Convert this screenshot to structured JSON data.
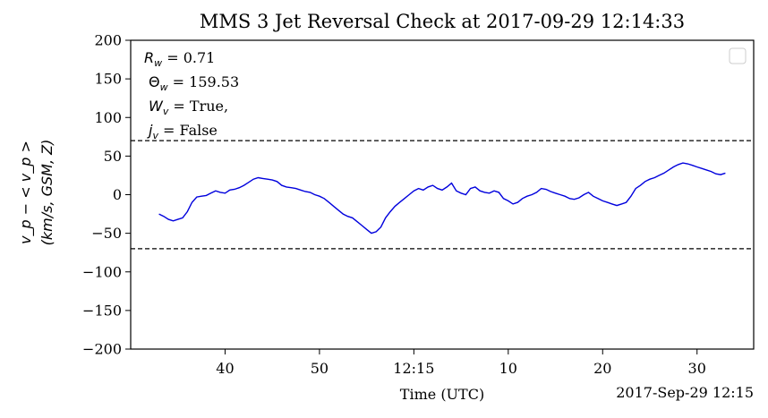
{
  "chart_data": {
    "type": "line",
    "title": "MMS 3 Jet Reversal Check at 2017-09-29 12:14:33",
    "xlabel": "Time (UTC)",
    "x_offset_label": "2017-Sep-29 12:15",
    "ylabel_line1": "v_p − < v_p >",
    "ylabel_line2": "(km/s, GSM, Z)",
    "ylim": [
      -200,
      200
    ],
    "yticks": [
      -200,
      -150,
      -100,
      -50,
      0,
      50,
      100,
      150,
      200
    ],
    "ytick_labels": [
      "−200",
      "−150",
      "−100",
      "−50",
      "0",
      "50",
      "100",
      "150",
      "200"
    ],
    "xlim": [
      "12:14:30",
      "12:15:36"
    ],
    "xticks": [
      "12:14:40",
      "12:14:50",
      "12:15:00",
      "12:15:10",
      "12:15:20",
      "12:15:30"
    ],
    "xtick_labels": [
      "40",
      "50",
      "12:15",
      "10",
      "20",
      "30"
    ],
    "thresholds": [
      70,
      -70
    ],
    "annotations": {
      "r_label": "R",
      "r_sub": "w",
      "r_value": " = 0.71",
      "theta_label": "Θ",
      "theta_sub": "w",
      "theta_value": " = 159.53",
      "w_label": "W",
      "w_sub": "v",
      "w_value": " = True,",
      "j_label": "j",
      "j_sub": "v",
      "j_value": " = False"
    },
    "legend_placement": "upper right",
    "grid": false,
    "series": [
      {
        "color": "#0000dd",
        "x": [
          "12:14:33.0",
          "12:14:33.5",
          "12:14:34.0",
          "12:14:34.5",
          "12:14:35.0",
          "12:14:35.5",
          "12:14:36.0",
          "12:14:36.5",
          "12:14:37.0",
          "12:14:37.5",
          "12:14:38.0",
          "12:14:38.5",
          "12:14:39.0",
          "12:14:39.5",
          "12:14:40.0",
          "12:14:40.5",
          "12:14:41.0",
          "12:14:41.5",
          "12:14:42.0",
          "12:14:42.5",
          "12:14:43.0",
          "12:14:43.5",
          "12:14:44.0",
          "12:14:44.5",
          "12:14:45.0",
          "12:14:45.5",
          "12:14:46.0",
          "12:14:46.5",
          "12:14:47.0",
          "12:14:47.5",
          "12:14:48.0",
          "12:14:48.5",
          "12:14:49.0",
          "12:14:49.5",
          "12:14:50.0",
          "12:14:50.5",
          "12:14:51.0",
          "12:14:51.5",
          "12:14:52.0",
          "12:14:52.5",
          "12:14:53.0",
          "12:14:53.5",
          "12:14:54.0",
          "12:14:54.5",
          "12:14:55.0",
          "12:14:55.5",
          "12:14:56.0",
          "12:14:56.5",
          "12:14:57.0",
          "12:14:57.5",
          "12:14:58.0",
          "12:14:58.5",
          "12:14:59.0",
          "12:14:59.5",
          "12:15:00.0",
          "12:15:00.5",
          "12:15:01.0",
          "12:15:01.5",
          "12:15:02.0",
          "12:15:02.5",
          "12:15:03.0",
          "12:15:03.5",
          "12:15:04.0",
          "12:15:04.5",
          "12:15:05.0",
          "12:15:05.5",
          "12:15:06.0",
          "12:15:06.5",
          "12:15:07.0",
          "12:15:07.5",
          "12:15:08.0",
          "12:15:08.5",
          "12:15:09.0",
          "12:15:09.5",
          "12:15:10.0",
          "12:15:10.5",
          "12:15:11.0",
          "12:15:11.5",
          "12:15:12.0",
          "12:15:12.5",
          "12:15:13.0",
          "12:15:13.5",
          "12:15:14.0",
          "12:15:14.5",
          "12:15:15.0",
          "12:15:15.5",
          "12:15:16.0",
          "12:15:16.5",
          "12:15:17.0",
          "12:15:17.5",
          "12:15:18.0",
          "12:15:18.5",
          "12:15:19.0",
          "12:15:19.5",
          "12:15:20.0",
          "12:15:20.5",
          "12:15:21.0",
          "12:15:21.5",
          "12:15:22.0",
          "12:15:22.5",
          "12:15:23.0",
          "12:15:23.5",
          "12:15:24.0",
          "12:15:24.5",
          "12:15:25.0",
          "12:15:25.5",
          "12:15:26.0",
          "12:15:26.5",
          "12:15:27.0",
          "12:15:27.5",
          "12:15:28.0",
          "12:15:28.5",
          "12:15:29.0",
          "12:15:29.5",
          "12:15:30.0",
          "12:15:30.5",
          "12:15:31.0",
          "12:15:31.5",
          "12:15:32.0",
          "12:15:32.5",
          "12:15:33.0"
        ],
        "y": [
          -25,
          -28,
          -32,
          -34,
          -32,
          -30,
          -22,
          -10,
          -3,
          -2,
          -1,
          2,
          5,
          3,
          2,
          6,
          7,
          9,
          12,
          16,
          20,
          22,
          21,
          20,
          19,
          17,
          12,
          10,
          9,
          8,
          6,
          4,
          3,
          0,
          -2,
          -5,
          -10,
          -15,
          -20,
          -25,
          -28,
          -30,
          -35,
          -40,
          -45,
          -50,
          -48,
          -42,
          -30,
          -22,
          -15,
          -10,
          -5,
          0,
          5,
          8,
          6,
          10,
          12,
          8,
          6,
          10,
          15,
          5,
          2,
          0,
          8,
          10,
          5,
          3,
          2,
          5,
          3,
          -5,
          -8,
          -12,
          -10,
          -5,
          -2,
          0,
          3,
          8,
          7,
          4,
          2,
          0,
          -2,
          -5,
          -6,
          -4,
          0,
          3,
          -2,
          -5,
          -8,
          -10,
          -12,
          -14,
          -12,
          -10,
          -2,
          8,
          12,
          17,
          20,
          22,
          25,
          28,
          32,
          36,
          39,
          41,
          40,
          38,
          36,
          34,
          32,
          30,
          27,
          26,
          28
        ]
      }
    ]
  }
}
